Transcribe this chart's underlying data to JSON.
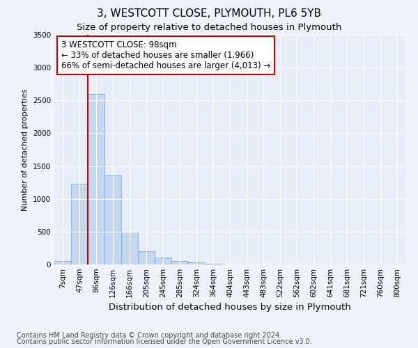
{
  "title": "3, WESTCOTT CLOSE, PLYMOUTH, PL6 5YB",
  "subtitle": "Size of property relative to detached houses in Plymouth",
  "xlabel": "Distribution of detached houses by size in Plymouth",
  "ylabel": "Number of detached properties",
  "categories": [
    "7sqm",
    "47sqm",
    "86sqm",
    "126sqm",
    "166sqm",
    "205sqm",
    "245sqm",
    "285sqm",
    "324sqm",
    "364sqm",
    "404sqm",
    "443sqm",
    "483sqm",
    "522sqm",
    "562sqm",
    "602sqm",
    "641sqm",
    "681sqm",
    "721sqm",
    "760sqm",
    "800sqm"
  ],
  "values": [
    50,
    1230,
    2600,
    1360,
    500,
    200,
    110,
    50,
    30,
    10,
    5,
    0,
    0,
    0,
    0,
    0,
    0,
    0,
    0,
    0,
    0
  ],
  "bar_color": "#c5d8f0",
  "bar_edge_color": "#7aaad4",
  "vline_x": 1.5,
  "vline_color": "#cc0000",
  "annotation_text": "3 WESTCOTT CLOSE: 98sqm\n← 33% of detached houses are smaller (1,966)\n66% of semi-detached houses are larger (4,013) →",
  "annotation_box_color": "#ffffff",
  "annotation_box_edge": "#cc0000",
  "ylim": [
    0,
    3500
  ],
  "yticks": [
    0,
    500,
    1000,
    1500,
    2000,
    2500,
    3000,
    3500
  ],
  "footer1": "Contains HM Land Registry data © Crown copyright and database right 2024.",
  "footer2": "Contains public sector information licensed under the Open Government Licence v3.0.",
  "bg_color": "#f0f4fa",
  "plot_bg_color": "#e8eef8",
  "grid_color": "#ffffff",
  "title_fontsize": 11,
  "subtitle_fontsize": 9.5,
  "tick_fontsize": 7.5,
  "ylabel_fontsize": 8,
  "xlabel_fontsize": 9.5,
  "footer_fontsize": 7,
  "annotation_fontsize": 8.5
}
